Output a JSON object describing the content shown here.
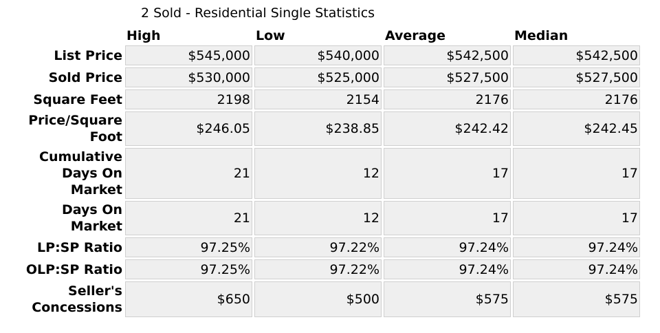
{
  "title": "2 Sold - Residential Single Statistics",
  "columns": [
    "High",
    "Low",
    "Average",
    "Median"
  ],
  "rows": [
    {
      "label": "List Price",
      "values": [
        "$545,000",
        "$540,000",
        "$542,500",
        "$542,500"
      ]
    },
    {
      "label": "Sold Price",
      "values": [
        "$530,000",
        "$525,000",
        "$527,500",
        "$527,500"
      ]
    },
    {
      "label": "Square Feet",
      "values": [
        "2198",
        "2154",
        "2176",
        "2176"
      ]
    },
    {
      "label": "Price/Square Foot",
      "values": [
        "$246.05",
        "$238.85",
        "$242.42",
        "$242.45"
      ]
    },
    {
      "label": "Cumulative Days On Market",
      "values": [
        "21",
        "12",
        "17",
        "17"
      ]
    },
    {
      "label": "Days On Market",
      "values": [
        "21",
        "12",
        "17",
        "17"
      ]
    },
    {
      "label": "LP:SP Ratio",
      "values": [
        "97.25%",
        "97.22%",
        "97.24%",
        "97.24%"
      ]
    },
    {
      "label": "OLP:SP Ratio",
      "values": [
        "97.25%",
        "97.22%",
        "97.24%",
        "97.24%"
      ]
    },
    {
      "label": "Seller's Concessions",
      "values": [
        "$650",
        "$500",
        "$575",
        "$575"
      ]
    }
  ]
}
